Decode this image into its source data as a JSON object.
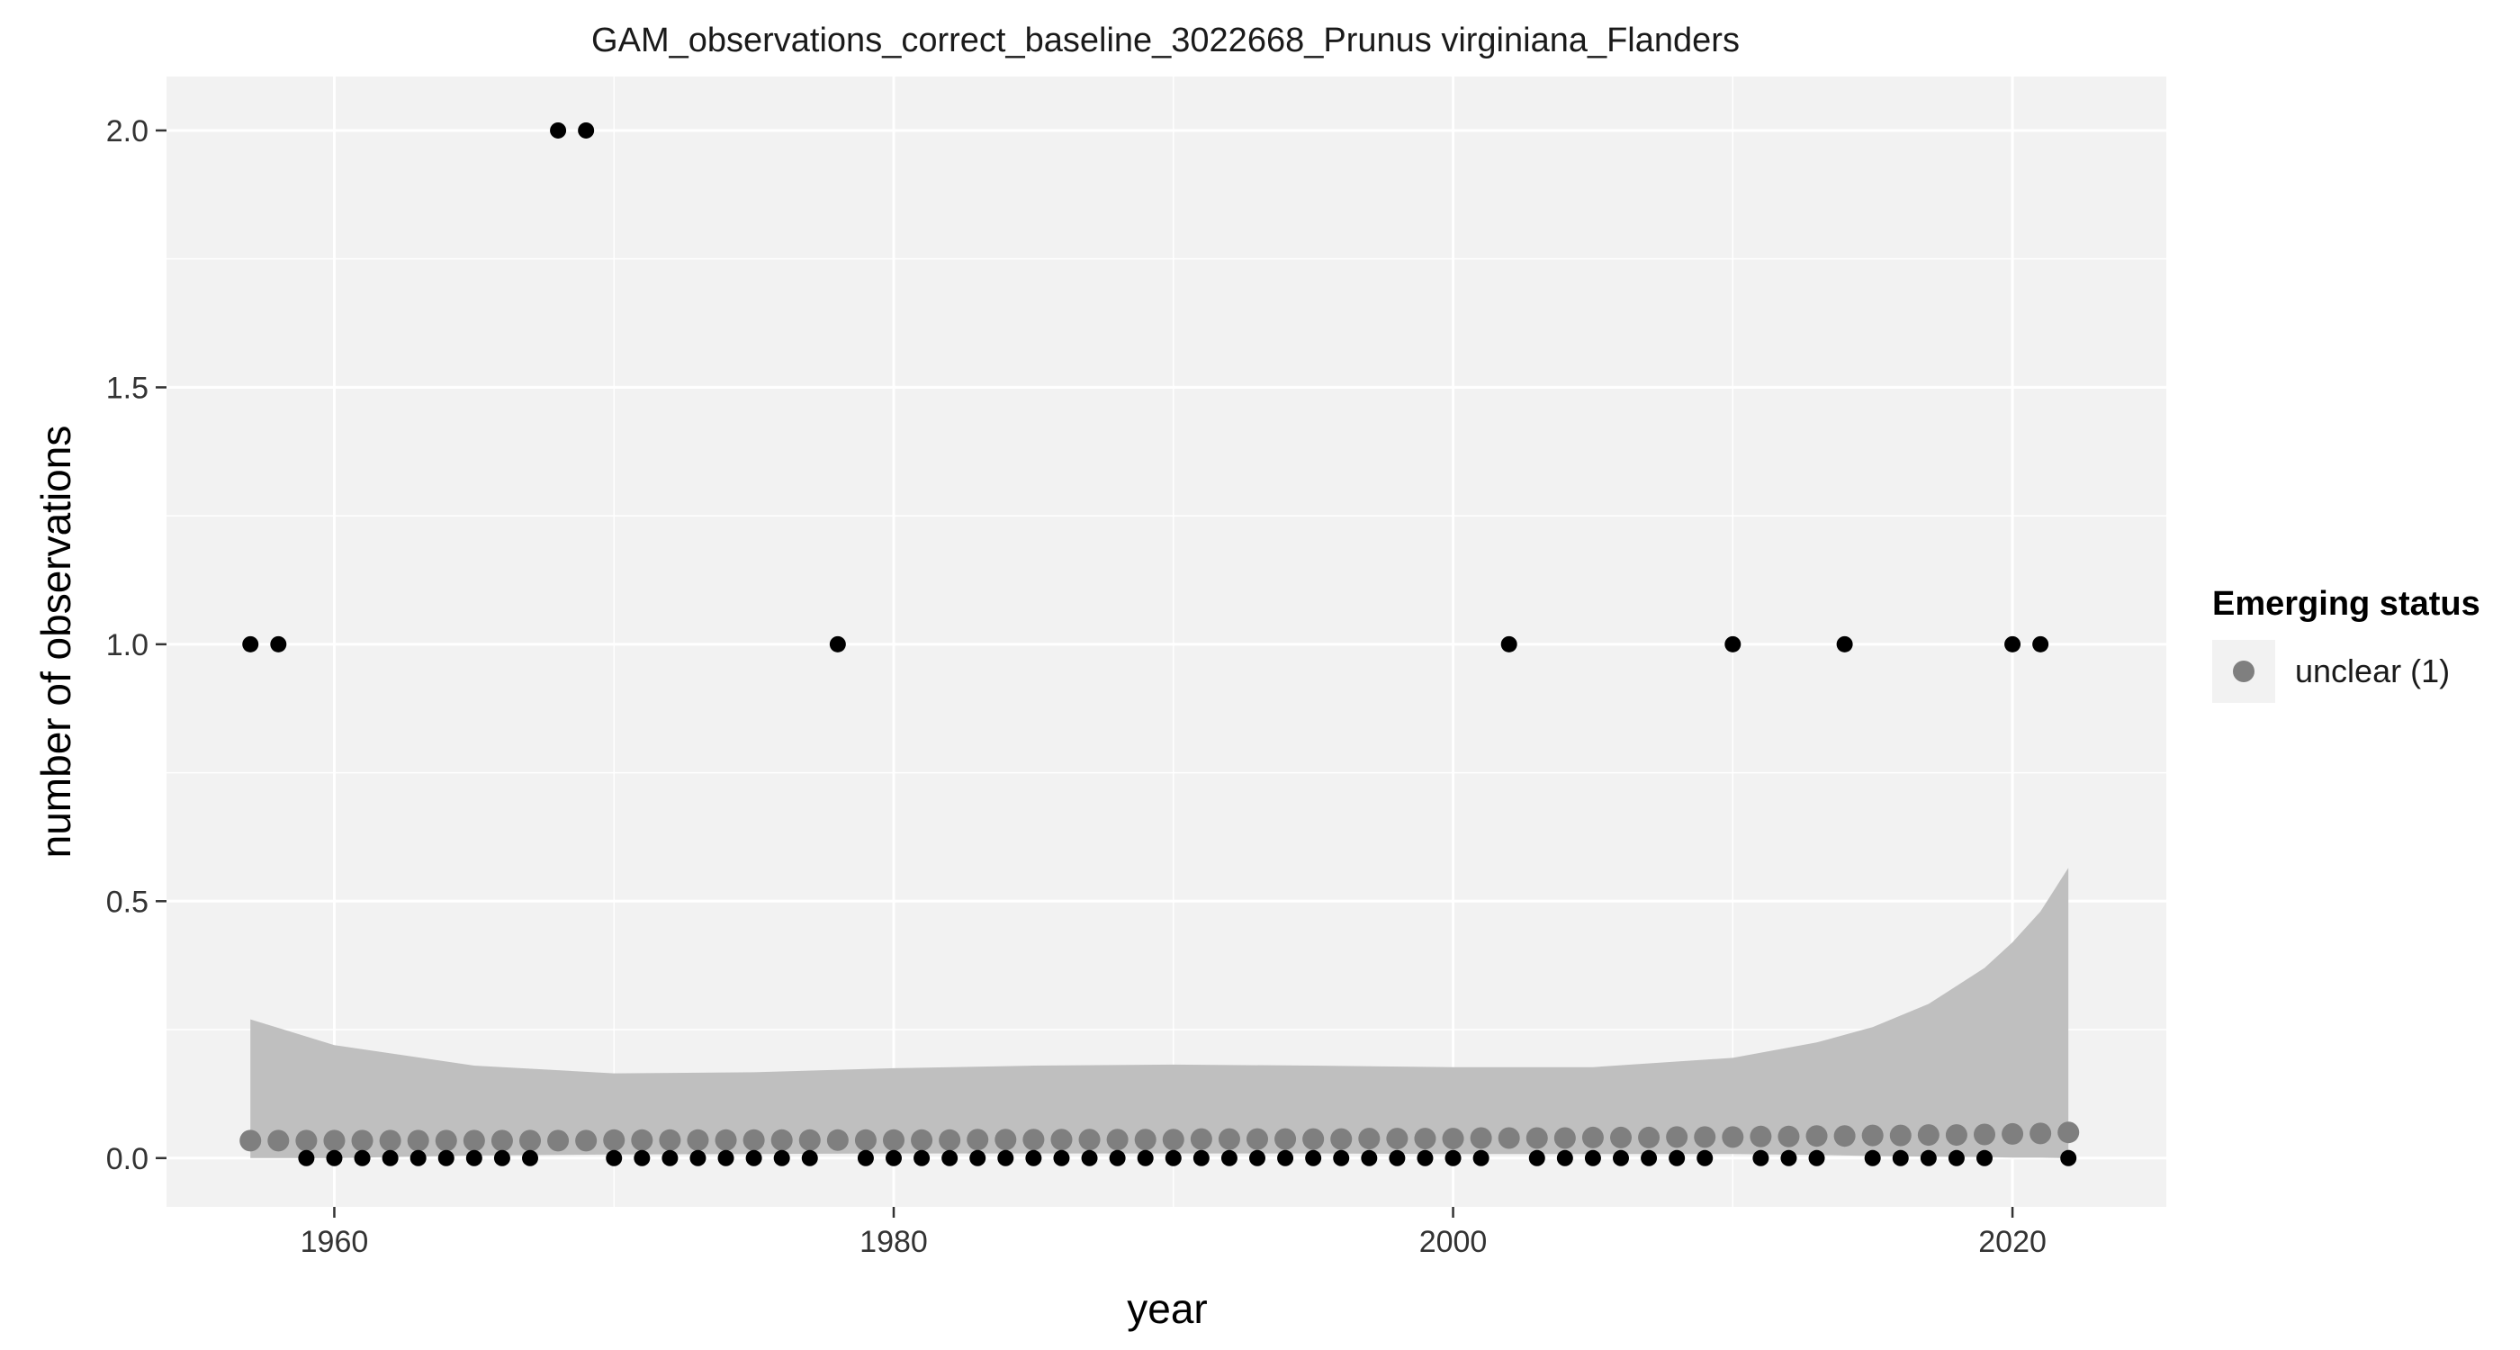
{
  "chart_data": {
    "type": "scatter",
    "title": "GAM_observations_correct_baseline_3022668_Prunus virginiana_Flanders",
    "xlabel": "year",
    "ylabel": "number of observations",
    "xlim": [
      1954,
      2025.5
    ],
    "ylim": [
      -0.095,
      2.105
    ],
    "x_ticks": [
      1960,
      1980,
      2000,
      2020
    ],
    "x_tick_labels": [
      "1960",
      "1980",
      "2000",
      "2020"
    ],
    "y_ticks": [
      0,
      0.5,
      1,
      1.5,
      2
    ],
    "y_tick_labels": [
      "0.0",
      "0.5",
      "1.0",
      "1.5",
      "2.0"
    ],
    "grid": true,
    "legend": {
      "title": "Emerging status",
      "position": "right",
      "entries": [
        {
          "label": "unclear (1)",
          "color": "#7f7f7f"
        }
      ]
    },
    "colors": {
      "panel": "#f2f2f2",
      "grid": "#ffffff",
      "observed_points": "#000000",
      "fit_points": "#7f7f7f",
      "ribbon": "#bfbfbf"
    },
    "observed": {
      "x": [
        1957,
        1958,
        1959,
        1960,
        1961,
        1962,
        1963,
        1964,
        1965,
        1966,
        1967,
        1968,
        1969,
        1970,
        1971,
        1972,
        1973,
        1974,
        1975,
        1976,
        1977,
        1978,
        1979,
        1980,
        1981,
        1982,
        1983,
        1984,
        1985,
        1986,
        1987,
        1988,
        1989,
        1990,
        1991,
        1992,
        1993,
        1994,
        1995,
        1996,
        1997,
        1998,
        1999,
        2000,
        2001,
        2002,
        2003,
        2004,
        2005,
        2006,
        2007,
        2008,
        2009,
        2010,
        2011,
        2012,
        2013,
        2014,
        2015,
        2016,
        2017,
        2018,
        2019,
        2020,
        2021,
        2022
      ],
      "y": [
        1,
        1,
        0,
        0,
        0,
        0,
        0,
        0,
        0,
        0,
        0,
        2,
        2,
        0,
        0,
        0,
        0,
        0,
        0,
        0,
        0,
        1,
        0,
        0,
        0,
        0,
        0,
        0,
        0,
        0,
        0,
        0,
        0,
        0,
        0,
        0,
        0,
        0,
        0,
        0,
        0,
        0,
        0,
        0,
        0,
        1,
        0,
        0,
        0,
        0,
        0,
        0,
        0,
        1,
        0,
        0,
        0,
        1,
        0,
        0,
        0,
        0,
        0,
        1,
        1,
        0
      ]
    },
    "fit": {
      "x": [
        1957,
        1958,
        1959,
        1960,
        1961,
        1962,
        1963,
        1964,
        1965,
        1966,
        1967,
        1968,
        1969,
        1970,
        1971,
        1972,
        1973,
        1974,
        1975,
        1976,
        1977,
        1978,
        1979,
        1980,
        1981,
        1982,
        1983,
        1984,
        1985,
        1986,
        1987,
        1988,
        1989,
        1990,
        1991,
        1992,
        1993,
        1994,
        1995,
        1996,
        1997,
        1998,
        1999,
        2000,
        2001,
        2002,
        2003,
        2004,
        2005,
        2006,
        2007,
        2008,
        2009,
        2010,
        2011,
        2012,
        2013,
        2014,
        2015,
        2016,
        2017,
        2018,
        2019,
        2020,
        2021,
        2022
      ],
      "y": [
        0.034,
        0.034,
        0.034,
        0.034,
        0.034,
        0.034,
        0.034,
        0.034,
        0.034,
        0.034,
        0.034,
        0.034,
        0.034,
        0.035,
        0.035,
        0.035,
        0.035,
        0.035,
        0.035,
        0.035,
        0.035,
        0.035,
        0.035,
        0.035,
        0.035,
        0.035,
        0.036,
        0.036,
        0.036,
        0.036,
        0.036,
        0.036,
        0.036,
        0.036,
        0.037,
        0.037,
        0.037,
        0.037,
        0.037,
        0.037,
        0.038,
        0.038,
        0.038,
        0.038,
        0.039,
        0.039,
        0.039,
        0.039,
        0.04,
        0.04,
        0.04,
        0.041,
        0.041,
        0.041,
        0.042,
        0.042,
        0.043,
        0.043,
        0.044,
        0.044,
        0.045,
        0.045,
        0.046,
        0.047,
        0.048,
        0.05
      ]
    },
    "ribbon": {
      "x": [
        1957,
        1960,
        1965,
        1970,
        1975,
        1980,
        1985,
        1990,
        1995,
        2000,
        2005,
        2010,
        2013,
        2015,
        2017,
        2019,
        2020,
        2021,
        2022
      ],
      "upper": [
        0.27,
        0.22,
        0.18,
        0.165,
        0.167,
        0.175,
        0.18,
        0.182,
        0.18,
        0.177,
        0.177,
        0.195,
        0.225,
        0.255,
        0.3,
        0.37,
        0.42,
        0.48,
        0.565
      ],
      "lower": [
        0.0,
        0.0,
        0.005,
        0.007,
        0.008,
        0.009,
        0.009,
        0.009,
        0.009,
        0.008,
        0.008,
        0.008,
        0.006,
        0.004,
        0.003,
        0.002,
        0.001,
        0.001,
        0.0
      ]
    }
  }
}
